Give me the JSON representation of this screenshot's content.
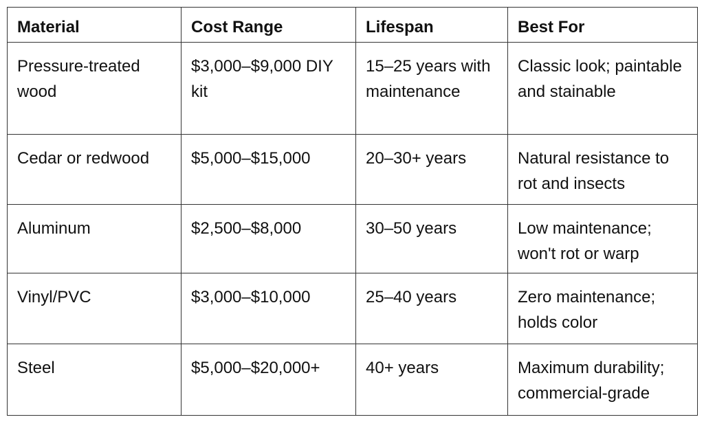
{
  "table": {
    "header": [
      "Material",
      "Cost Range",
      "Lifespan",
      "Best For"
    ],
    "rows": [
      [
        "Pressure-treated wood",
        "$3,000–$9,000 DIY kit",
        "15–25 years with maintenance",
        "Classic look; paintable and stainable"
      ],
      [
        "Cedar or redwood",
        "$5,000–$15,000",
        "20–30+ years",
        "Natural resistance to rot and insects"
      ],
      [
        "Aluminum",
        "$2,500–$8,000",
        "30–50 years",
        "Low maintenance; won't rot or warp"
      ],
      [
        "Vinyl/PVC",
        "$3,000–$10,000",
        "25–40 years",
        "Zero maintenance; holds color"
      ],
      [
        "Steel",
        "$5,000–$20,000+",
        "40+ years",
        "Maximum durability; commercial-grade"
      ]
    ]
  }
}
